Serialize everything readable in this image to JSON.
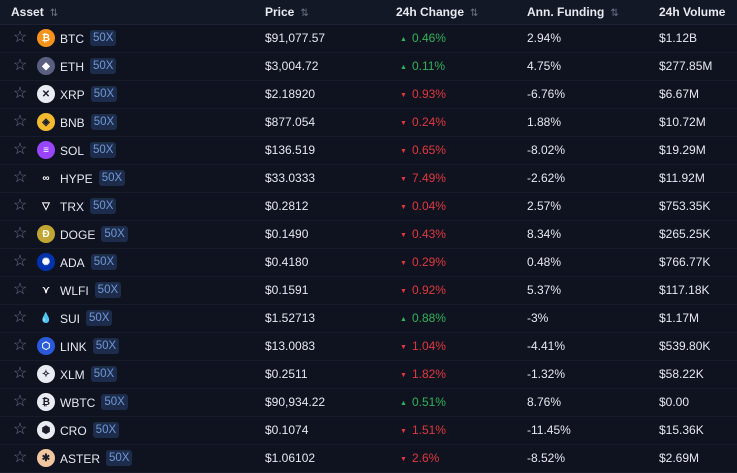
{
  "headers": {
    "asset": "Asset",
    "price": "Price",
    "change": "24h Change",
    "funding": "Ann. Funding",
    "volume": "24h Volume"
  },
  "sort_icon": "sort-arrows-icon",
  "colors": {
    "up": "#2fb25a",
    "down": "#e0383e",
    "badge_bg": "#1d2c4a",
    "badge_text": "#6f97d6"
  },
  "rows": [
    {
      "symbol": "BTC",
      "leverage": "50X",
      "price": "$91,077.57",
      "change": "0.46%",
      "dir": "up",
      "funding": "2.94%",
      "volume": "$1.12B",
      "icon": "bitcoin-icon",
      "color": "#f7931a",
      "glyph": "₿"
    },
    {
      "symbol": "ETH",
      "leverage": "50X",
      "price": "$3,004.72",
      "change": "0.11%",
      "dir": "up",
      "funding": "4.75%",
      "volume": "$277.85M",
      "icon": "ethereum-icon",
      "color": "#5a5f80",
      "glyph": "◆"
    },
    {
      "symbol": "XRP",
      "leverage": "50X",
      "price": "$2.18920",
      "change": "0.93%",
      "dir": "down",
      "funding": "-6.76%",
      "volume": "$6.67M",
      "icon": "xrp-icon",
      "color": "#e9ecf2",
      "glyph": "✕"
    },
    {
      "symbol": "BNB",
      "leverage": "50X",
      "price": "$877.054",
      "change": "0.24%",
      "dir": "down",
      "funding": "1.88%",
      "volume": "$10.72M",
      "icon": "bnb-icon",
      "color": "#f3ba2f",
      "glyph": "◈"
    },
    {
      "symbol": "SOL",
      "leverage": "50X",
      "price": "$136.519",
      "change": "0.65%",
      "dir": "down",
      "funding": "-8.02%",
      "volume": "$19.29M",
      "icon": "solana-icon",
      "color": "#9945ff",
      "glyph": "≡"
    },
    {
      "symbol": "HYPE",
      "leverage": "50X",
      "price": "$33.0333",
      "change": "7.49%",
      "dir": "down",
      "funding": "-2.62%",
      "volume": "$11.92M",
      "icon": "hyperliquid-icon",
      "color": "#0f1320",
      "glyph": "∞"
    },
    {
      "symbol": "TRX",
      "leverage": "50X",
      "price": "$0.2812",
      "change": "0.04%",
      "dir": "down",
      "funding": "2.57%",
      "volume": "$753.35K",
      "icon": "tron-icon",
      "color": "#0f1320",
      "glyph": "▽"
    },
    {
      "symbol": "DOGE",
      "leverage": "50X",
      "price": "$0.1490",
      "change": "0.43%",
      "dir": "down",
      "funding": "8.34%",
      "volume": "$265.25K",
      "icon": "dogecoin-icon",
      "color": "#c2a633",
      "glyph": "Ð"
    },
    {
      "symbol": "ADA",
      "leverage": "50X",
      "price": "$0.4180",
      "change": "0.29%",
      "dir": "down",
      "funding": "0.48%",
      "volume": "$766.77K",
      "icon": "cardano-icon",
      "color": "#0033ad",
      "glyph": "✺"
    },
    {
      "symbol": "WLFI",
      "leverage": "50X",
      "price": "$0.1591",
      "change": "0.92%",
      "dir": "down",
      "funding": "5.37%",
      "volume": "$117.18K",
      "icon": "wlfi-icon",
      "color": "#0f1320",
      "glyph": "⋎"
    },
    {
      "symbol": "SUI",
      "leverage": "50X",
      "price": "$1.52713",
      "change": "0.88%",
      "dir": "up",
      "funding": "-3%",
      "volume": "$1.17M",
      "icon": "sui-icon",
      "color": "#0f1320",
      "glyph": "💧"
    },
    {
      "symbol": "LINK",
      "leverage": "50X",
      "price": "$13.0083",
      "change": "1.04%",
      "dir": "down",
      "funding": "-4.41%",
      "volume": "$539.80K",
      "icon": "chainlink-icon",
      "color": "#2a5ada",
      "glyph": "⬡"
    },
    {
      "symbol": "XLM",
      "leverage": "50X",
      "price": "$0.2511",
      "change": "1.82%",
      "dir": "down",
      "funding": "-1.32%",
      "volume": "$58.22K",
      "icon": "stellar-icon",
      "color": "#e9ecf2",
      "glyph": "✧"
    },
    {
      "symbol": "WBTC",
      "leverage": "50X",
      "price": "$90,934.22",
      "change": "0.51%",
      "dir": "up",
      "funding": "8.76%",
      "volume": "$0.00",
      "icon": "wrapped-bitcoin-icon",
      "color": "#e9ecf2",
      "glyph": "₿"
    },
    {
      "symbol": "CRO",
      "leverage": "50X",
      "price": "$0.1074",
      "change": "1.51%",
      "dir": "down",
      "funding": "-11.45%",
      "volume": "$15.36K",
      "icon": "cronos-icon",
      "color": "#e9ecf2",
      "glyph": "⬢"
    },
    {
      "symbol": "ASTER",
      "leverage": "50X",
      "price": "$1.06102",
      "change": "2.6%",
      "dir": "down",
      "funding": "-8.52%",
      "volume": "$2.69M",
      "icon": "aster-icon",
      "color": "#f0c7a0",
      "glyph": "✱"
    }
  ]
}
